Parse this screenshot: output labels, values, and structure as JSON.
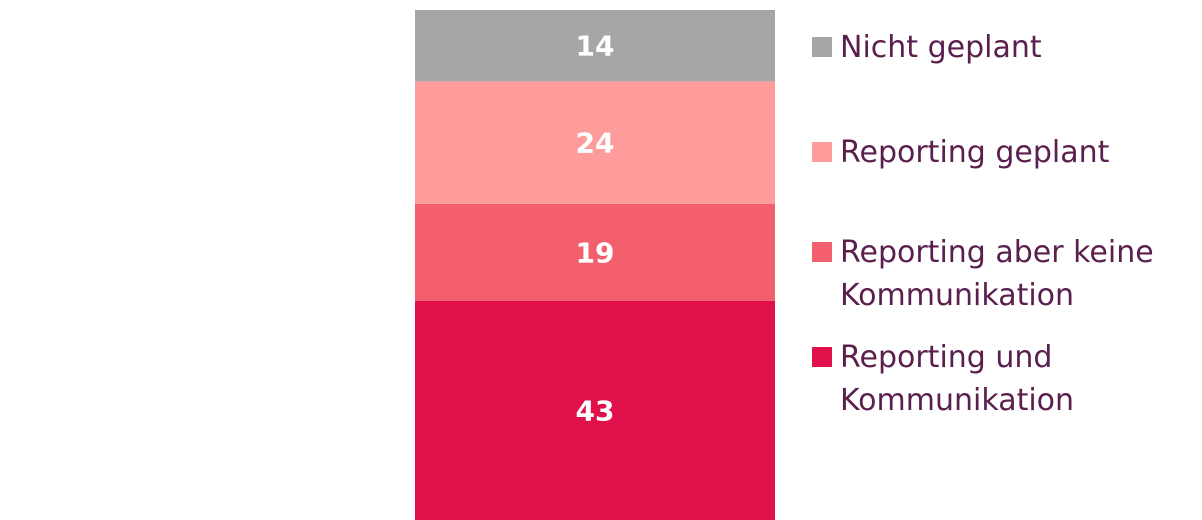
{
  "chart_data": {
    "type": "stacked-bar",
    "series": [
      {
        "name": "Reporting und Kommunikation",
        "color": "#e0104a",
        "values": [
          43
        ]
      },
      {
        "name": "Reporting aber keine Kommunikation",
        "color": "#f35f6c",
        "values": [
          19
        ]
      },
      {
        "name": "Reporting geplant",
        "color": "#fe9c9c",
        "values": [
          24
        ]
      },
      {
        "name": "Nicht geplant",
        "color": "#a6a6a6",
        "values": [
          14
        ]
      }
    ]
  }
}
